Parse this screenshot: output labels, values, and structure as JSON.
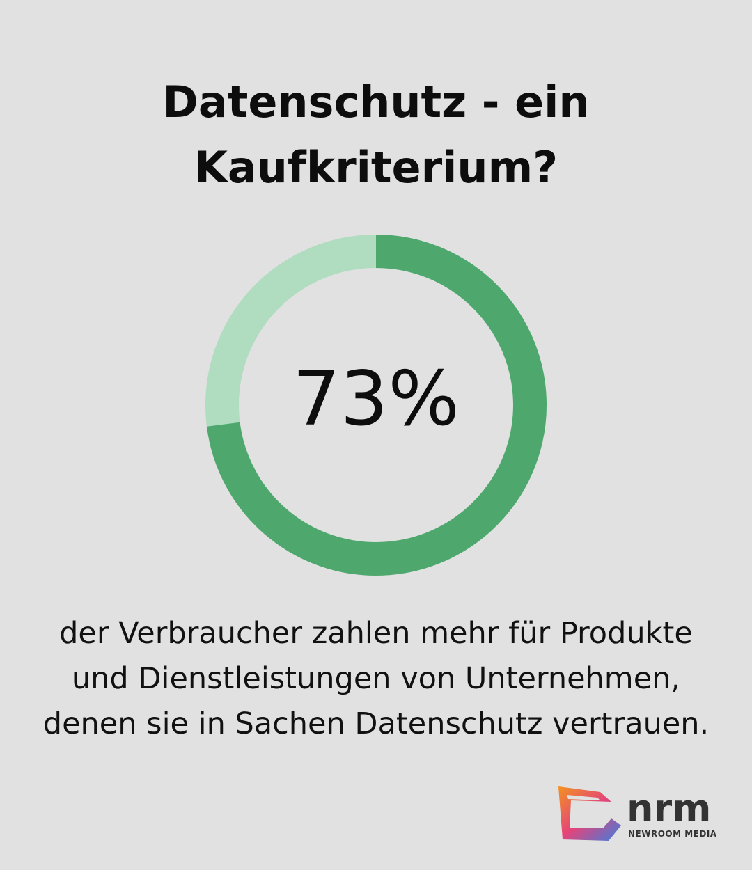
{
  "chart_data": {
    "type": "donut",
    "title": "Datenschutz - ein Kaufkriterium?",
    "values": [
      73
    ],
    "value_labels": [
      "73%"
    ],
    "ylim": [
      0,
      100
    ],
    "color": "#4ea86e",
    "track_color": "#b0dcc0",
    "caption": "der Verbraucher zahlen mehr für Produkte und Dienstleistungen von Unternehmen, denen sie in Sachen Datenschutz vertrauen."
  },
  "logo": {
    "text": "nrm",
    "subtitle": "NEWROOM MEDIA"
  }
}
